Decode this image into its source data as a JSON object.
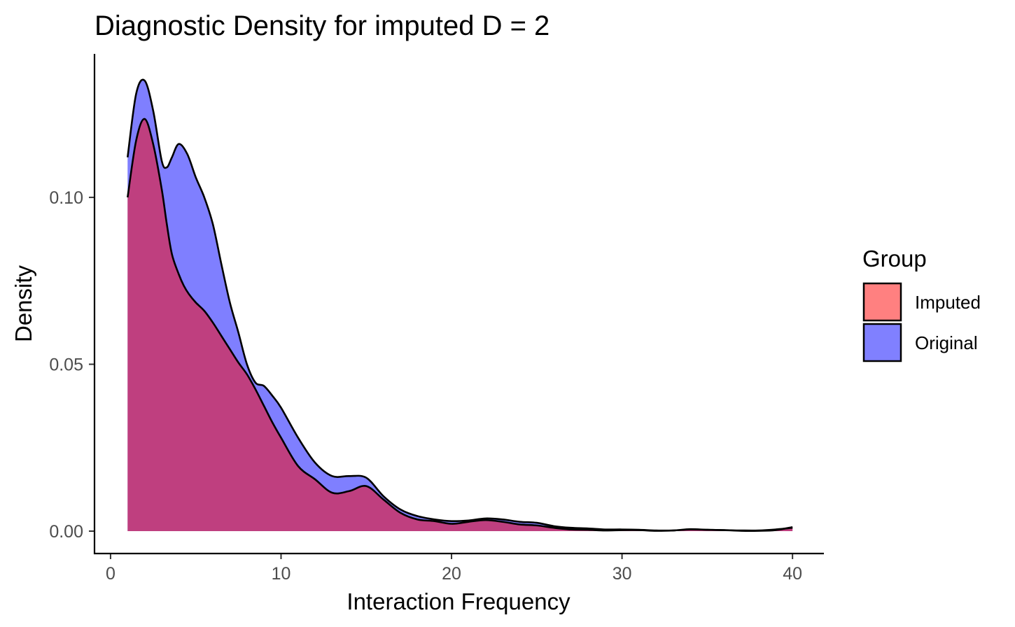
{
  "chart_data": {
    "type": "area",
    "title": "Diagnostic Density for imputed D = 2",
    "xlabel": "Interaction Frequency",
    "ylabel": "Density",
    "xlim": [
      -0.9,
      41.8
    ],
    "ylim": [
      -0.0065,
      0.143
    ],
    "x_ticks": [
      0,
      10,
      20,
      30,
      40
    ],
    "x_tick_labels": [
      "0",
      "10",
      "20",
      "30",
      "40"
    ],
    "y_ticks": [
      0,
      0.05,
      0.1
    ],
    "y_tick_labels": [
      "0.00",
      "0.05",
      "0.10"
    ],
    "grid": false,
    "legend": {
      "title": "Group",
      "position": "right",
      "entries": [
        "Imputed",
        "Original"
      ]
    },
    "series": [
      {
        "name": "Imputed",
        "color": "#ff0000",
        "fill_opacity": 0.5,
        "x": [
          1,
          1.5,
          2,
          2.5,
          3,
          3.3,
          3.6,
          4,
          4.3,
          4.6,
          5,
          5.5,
          6,
          6.5,
          7,
          7.5,
          8,
          8.5,
          9,
          9.5,
          10,
          11,
          12,
          13,
          14,
          15,
          16,
          17,
          18,
          19,
          20,
          21,
          22,
          23,
          24,
          25,
          26,
          27,
          28,
          29,
          30,
          31,
          32,
          33,
          34,
          35,
          36,
          37,
          38,
          39,
          40
        ],
        "y": [
          0.1,
          0.117,
          0.1235,
          0.116,
          0.1025,
          0.092,
          0.083,
          0.077,
          0.0735,
          0.071,
          0.0685,
          0.066,
          0.0625,
          0.0585,
          0.0545,
          0.0505,
          0.047,
          0.0425,
          0.0375,
          0.0325,
          0.028,
          0.0195,
          0.0155,
          0.0115,
          0.012,
          0.0135,
          0.0095,
          0.0055,
          0.0035,
          0.003,
          0.0022,
          0.0028,
          0.0033,
          0.0028,
          0.002,
          0.0017,
          0.001,
          0.0005,
          0.0004,
          0.0002,
          0.0003,
          0.0003,
          0.0001,
          0.0002,
          0.0005,
          0.0004,
          0.0003,
          0.0002,
          0.0002,
          0.0005,
          0.001
        ]
      },
      {
        "name": "Original",
        "color": "#0000ff",
        "fill_opacity": 0.5,
        "x": [
          1,
          1.5,
          2,
          2.5,
          3,
          3.3,
          3.6,
          4,
          4.5,
          5,
          5.5,
          6,
          6.5,
          7,
          7.5,
          8,
          8.5,
          9,
          9.5,
          10,
          11,
          12,
          13,
          14,
          15,
          16,
          17,
          18,
          19,
          20,
          21,
          22,
          23,
          24,
          25,
          26,
          27,
          28,
          29,
          30,
          31,
          32,
          33,
          34,
          35,
          36,
          37,
          38,
          39,
          40
        ],
        "y": [
          0.112,
          0.131,
          0.135,
          0.126,
          0.111,
          0.109,
          0.112,
          0.116,
          0.113,
          0.106,
          0.1,
          0.092,
          0.08,
          0.0685,
          0.0595,
          0.05,
          0.0445,
          0.0435,
          0.0405,
          0.037,
          0.028,
          0.0205,
          0.0165,
          0.0165,
          0.016,
          0.0105,
          0.0065,
          0.0045,
          0.0035,
          0.003,
          0.0032,
          0.0038,
          0.0035,
          0.0028,
          0.0025,
          0.0015,
          0.001,
          0.0008,
          0.0005,
          0.0005,
          0.0004,
          0.0002,
          0.0002,
          0.0006,
          0.0004,
          0.0003,
          0.0001,
          0.0001,
          0.0003,
          0.0012
        ]
      }
    ]
  }
}
